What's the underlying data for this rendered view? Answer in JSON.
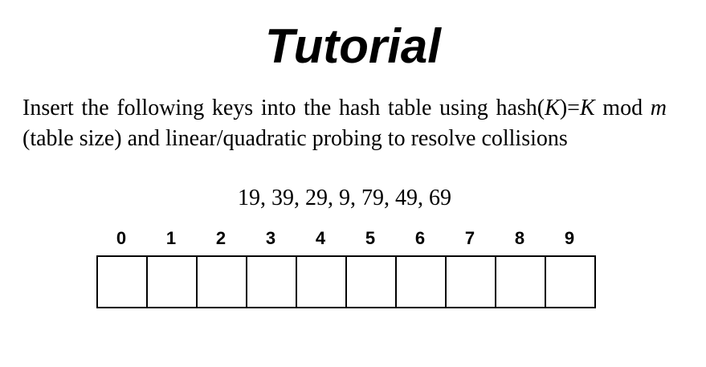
{
  "title": "Tutorial",
  "instruction": {
    "before_k1": "Insert the following keys into the hash table using hash(",
    "k1": "K",
    "between_ks": ")=",
    "k2": "K",
    "before_m": " mod ",
    "m": "m",
    "after_m": " (table size) and linear/quadratic probing to resolve collisions"
  },
  "keys_text": "19, 39, 29, 9, 79, 49, 69",
  "table": {
    "indices": [
      "0",
      "1",
      "2",
      "3",
      "4",
      "5",
      "6",
      "7",
      "8",
      "9"
    ],
    "cells": [
      "",
      "",
      "",
      "",
      "",
      "",
      "",
      "",
      "",
      ""
    ]
  }
}
